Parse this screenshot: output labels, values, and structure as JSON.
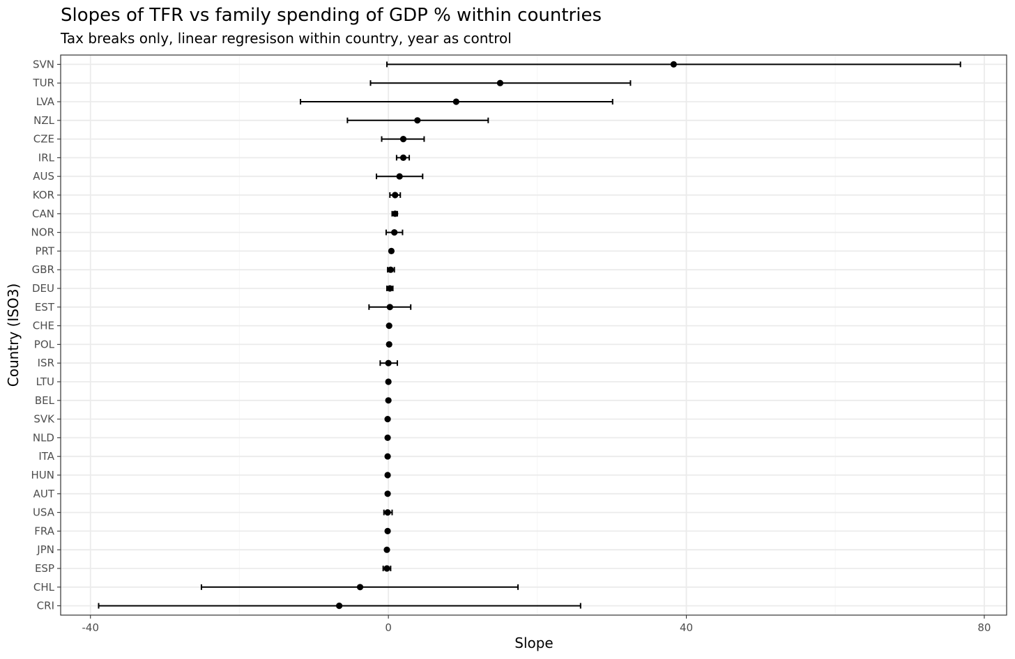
{
  "chart_data": {
    "type": "scatter",
    "title": "Slopes of TFR vs family spending of GDP % within countries",
    "subtitle": "Tax breaks only, linear regresison within country, year as control",
    "xlabel": "Slope",
    "ylabel": "Country (ISO3)",
    "xlim": [
      -44,
      83
    ],
    "x_ticks": [
      -40,
      0,
      40,
      80
    ],
    "grid": true,
    "categories": [
      "SVN",
      "TUR",
      "LVA",
      "NZL",
      "CZE",
      "IRL",
      "AUS",
      "KOR",
      "CAN",
      "NOR",
      "PRT",
      "GBR",
      "DEU",
      "EST",
      "CHE",
      "POL",
      "ISR",
      "LTU",
      "BEL",
      "SVK",
      "NLD",
      "ITA",
      "HUN",
      "AUT",
      "USA",
      "FRA",
      "JPN",
      "ESP",
      "CHL",
      "CRI"
    ],
    "estimates": [
      38.3,
      15.0,
      9.1,
      3.9,
      2.0,
      2.0,
      1.5,
      0.9,
      0.9,
      0.8,
      0.4,
      0.3,
      0.2,
      0.2,
      0.1,
      0.1,
      0.0,
      0.0,
      0.0,
      -0.1,
      -0.1,
      -0.1,
      -0.1,
      -0.1,
      -0.1,
      -0.1,
      -0.2,
      -0.2,
      -3.8,
      -6.6
    ],
    "ci_low": [
      -0.2,
      -2.4,
      -11.8,
      -5.5,
      -0.9,
      1.1,
      -1.6,
      0.2,
      0.5,
      -0.3,
      0.3,
      -0.1,
      -0.2,
      -2.6,
      0.0,
      0.0,
      -1.1,
      -0.1,
      -0.1,
      -0.1,
      -0.1,
      -0.2,
      -0.1,
      -0.1,
      -0.6,
      -0.2,
      -0.2,
      -0.7,
      -25.1,
      -38.9
    ],
    "ci_high": [
      76.8,
      32.5,
      30.1,
      13.4,
      4.8,
      2.8,
      4.6,
      1.6,
      1.2,
      1.9,
      0.5,
      0.8,
      0.6,
      3.0,
      0.1,
      0.1,
      1.2,
      0.0,
      0.1,
      0.0,
      0.0,
      0.0,
      0.0,
      0.0,
      0.5,
      0.0,
      -0.1,
      0.3,
      17.4,
      25.8
    ]
  },
  "colors": {
    "points": "#000000",
    "panel_border": "#333333",
    "grid_major": "#ebebeb",
    "grid_minor": "#f5f5f5",
    "tick_text": "#4d4d4d"
  }
}
